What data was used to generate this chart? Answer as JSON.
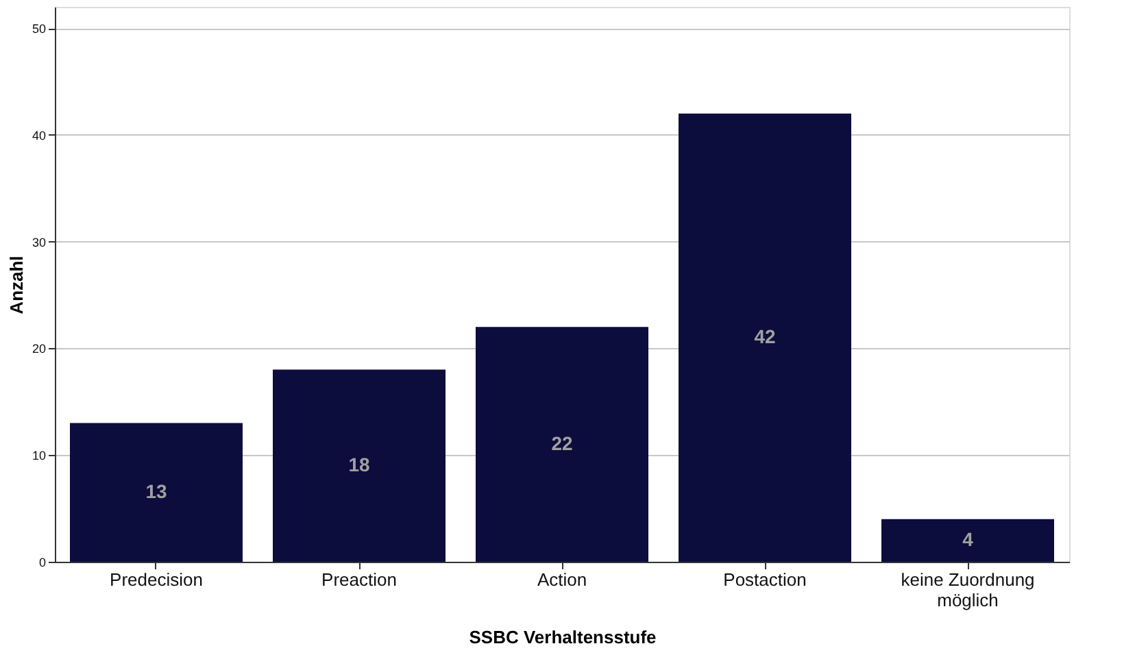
{
  "chart_data": {
    "type": "bar",
    "xlabel": "SSBC Verhaltensstufe",
    "ylabel": "Anzahl",
    "categories": [
      "Predecision",
      "Preaction",
      "Action",
      "Postaction",
      "keine Zuordnung möglich"
    ],
    "values": [
      13,
      18,
      22,
      42,
      4
    ],
    "color": "#0c0d3c",
    "ylim": [
      0,
      52
    ],
    "yticks": [
      0,
      10,
      20,
      30,
      40,
      50
    ],
    "grid": "y",
    "data_labels": true
  }
}
